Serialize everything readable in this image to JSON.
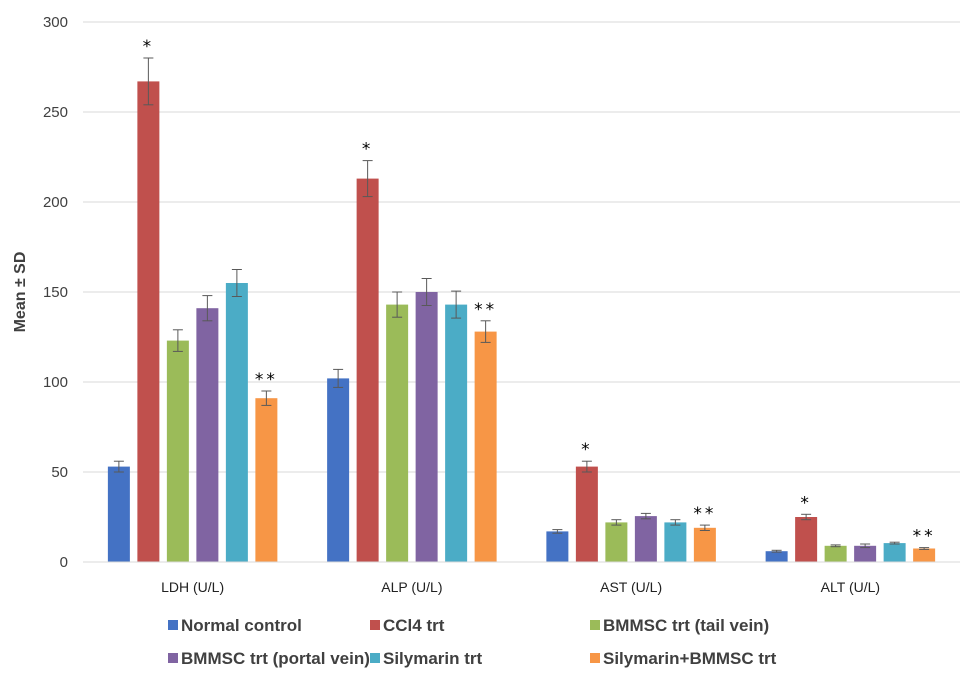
{
  "chart_data": {
    "type": "bar",
    "title": "",
    "xlabel": "",
    "ylabel": "Mean ± SD",
    "ylim": [
      0,
      300
    ],
    "yticks": [
      0,
      50,
      100,
      150,
      200,
      250,
      300
    ],
    "grid": true,
    "legend_position": "bottom",
    "categories": [
      "LDH (U/L)",
      "ALP (U/L)",
      "AST (U/L)",
      "ALT (U/L)"
    ],
    "series": [
      {
        "name": "Normal control",
        "color": "#4472C4",
        "values": [
          53,
          102,
          17,
          6
        ],
        "errors": [
          3,
          5,
          1,
          0.5
        ],
        "annotations": [
          "",
          "",
          "",
          ""
        ]
      },
      {
        "name": "CCl4 trt",
        "color": "#C0504D",
        "values": [
          267,
          213,
          53,
          25
        ],
        "errors": [
          13,
          10,
          3,
          1.5
        ],
        "annotations": [
          "*",
          "*",
          "*",
          "*"
        ]
      },
      {
        "name": "BMMSC trt (tail vein)",
        "color": "#9BBB59",
        "values": [
          123,
          143,
          22,
          9
        ],
        "errors": [
          6,
          7,
          1.5,
          0.5
        ],
        "annotations": [
          "",
          "",
          "",
          ""
        ]
      },
      {
        "name": "BMMSC trt (portal vein)",
        "color": "#8064A2",
        "values": [
          141,
          150,
          25.5,
          9
        ],
        "errors": [
          7,
          7.5,
          1.5,
          1
        ],
        "annotations": [
          "",
          "",
          "",
          ""
        ]
      },
      {
        "name": "Silymarin trt",
        "color": "#4BACC6",
        "values": [
          155,
          143,
          22,
          10.5
        ],
        "errors": [
          7.5,
          7.5,
          1.5,
          0.5
        ],
        "annotations": [
          "",
          "",
          "",
          ""
        ]
      },
      {
        "name": "Silymarin+BMMSC trt",
        "color": "#F79646",
        "values": [
          91,
          128,
          19,
          7.5
        ],
        "errors": [
          4,
          6,
          1.5,
          0.5
        ],
        "annotations": [
          "**",
          "**",
          "**",
          "**"
        ]
      }
    ]
  }
}
